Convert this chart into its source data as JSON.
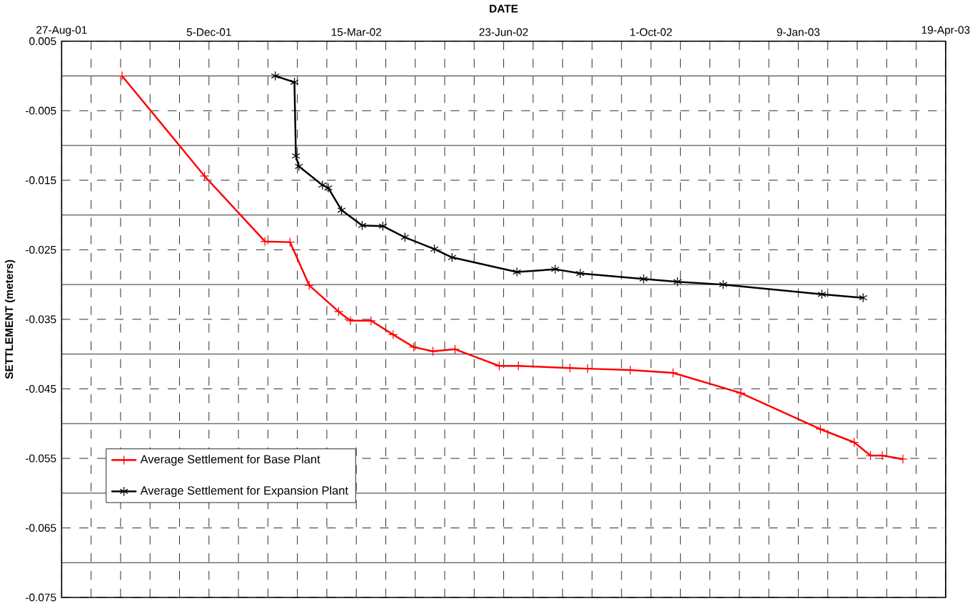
{
  "chart_data": {
    "type": "line",
    "xlabel": "DATE",
    "ylabel": "SETTLEMENT (meters)",
    "xlim": [
      "2001-08-27",
      "2003-04-19"
    ],
    "xticks": [
      {
        "value": "2001-08-27",
        "label": "27-Aug-01"
      },
      {
        "value": "2001-09-16",
        "label": null
      },
      {
        "value": "2001-10-06",
        "label": null
      },
      {
        "value": "2001-10-26",
        "label": null
      },
      {
        "value": "2001-11-15",
        "label": null
      },
      {
        "value": "2001-12-05",
        "label": "5-Dec-01"
      },
      {
        "value": "2001-12-25",
        "label": null
      },
      {
        "value": "2002-01-14",
        "label": null
      },
      {
        "value": "2002-02-03",
        "label": null
      },
      {
        "value": "2002-02-23",
        "label": null
      },
      {
        "value": "2002-03-15",
        "label": "15-Mar-02"
      },
      {
        "value": "2002-04-04",
        "label": null
      },
      {
        "value": "2002-04-24",
        "label": null
      },
      {
        "value": "2002-05-14",
        "label": null
      },
      {
        "value": "2002-06-03",
        "label": null
      },
      {
        "value": "2002-06-23",
        "label": "23-Jun-02"
      },
      {
        "value": "2002-07-13",
        "label": null
      },
      {
        "value": "2002-08-02",
        "label": null
      },
      {
        "value": "2002-08-22",
        "label": null
      },
      {
        "value": "2002-09-11",
        "label": null
      },
      {
        "value": "2002-10-01",
        "label": "1-Oct-02"
      },
      {
        "value": "2002-10-21",
        "label": null
      },
      {
        "value": "2002-11-10",
        "label": null
      },
      {
        "value": "2002-11-30",
        "label": null
      },
      {
        "value": "2002-12-20",
        "label": null
      },
      {
        "value": "2003-01-09",
        "label": "9-Jan-03"
      },
      {
        "value": "2003-01-29",
        "label": null
      },
      {
        "value": "2003-02-18",
        "label": null
      },
      {
        "value": "2003-03-10",
        "label": null
      },
      {
        "value": "2003-03-30",
        "label": null
      },
      {
        "value": "2003-04-19",
        "label": "19-Apr-03"
      }
    ],
    "ylim": [
      -0.075,
      0.005
    ],
    "yticks": [
      0.005,
      {
        "value": 0,
        "label": null
      },
      -0.005,
      {
        "value": -0.01,
        "label": null
      },
      -0.015,
      {
        "value": -0.02,
        "label": null
      },
      -0.025,
      {
        "value": -0.03,
        "label": null
      },
      -0.035,
      {
        "value": -0.04,
        "label": null
      },
      -0.045,
      {
        "value": -0.05,
        "label": null
      },
      -0.055,
      {
        "value": -0.06,
        "label": null
      },
      -0.065,
      {
        "value": -0.07,
        "label": null
      },
      -0.075
    ],
    "grid": true,
    "legend": "bottom left",
    "line_style": "solid",
    "series": [
      {
        "name": "Average Settlement for Base Plant",
        "color": "#ff0000",
        "marker": "cross",
        "x": [
          "2001-10-07",
          "2001-12-02",
          "2002-01-12",
          "2002-01-29",
          "2002-02-11",
          "2002-03-03",
          "2002-03-11",
          "2002-03-25",
          "2002-04-09",
          "2002-04-23",
          "2002-05-06",
          "2002-05-21",
          "2002-06-20",
          "2002-07-03",
          "2002-08-07",
          "2002-08-19",
          "2002-09-17",
          "2002-10-16",
          "2002-12-01",
          "2003-01-24",
          "2003-02-16",
          "2003-02-27",
          "2003-03-07",
          "2003-03-21"
        ],
        "values": [
          0.0,
          -0.0144,
          -0.0238,
          -0.0239,
          -0.0301,
          -0.0339,
          -0.0352,
          -0.0352,
          -0.0372,
          -0.039,
          -0.0396,
          -0.0393,
          -0.0417,
          -0.0417,
          -0.042,
          -0.0421,
          -0.0423,
          -0.0427,
          -0.0456,
          -0.0508,
          -0.0527,
          -0.0546,
          -0.0546,
          -0.0551
        ]
      },
      {
        "name": "Average Settlement for Expansion Plant",
        "color": "#000000",
        "marker": "cross",
        "x": [
          "2002-01-19",
          "2002-02-01",
          "2002-02-02",
          "2002-02-04",
          "2002-02-20",
          "2002-02-24",
          "2002-03-05",
          "2002-03-19",
          "2002-04-02",
          "2002-04-17",
          "2002-05-07",
          "2002-05-19",
          "2002-07-02",
          "2002-07-28",
          "2002-08-14",
          "2002-09-26",
          "2002-10-19",
          "2002-11-19",
          "2003-01-25",
          "2003-02-22"
        ],
        "values": [
          0.0,
          -0.0009,
          -0.0115,
          -0.013,
          -0.0157,
          -0.0161,
          -0.0193,
          -0.0215,
          -0.0216,
          -0.0232,
          -0.0249,
          -0.0261,
          -0.0282,
          -0.0278,
          -0.0284,
          -0.0292,
          -0.0296,
          -0.03,
          -0.0314,
          -0.0319
        ]
      }
    ]
  }
}
